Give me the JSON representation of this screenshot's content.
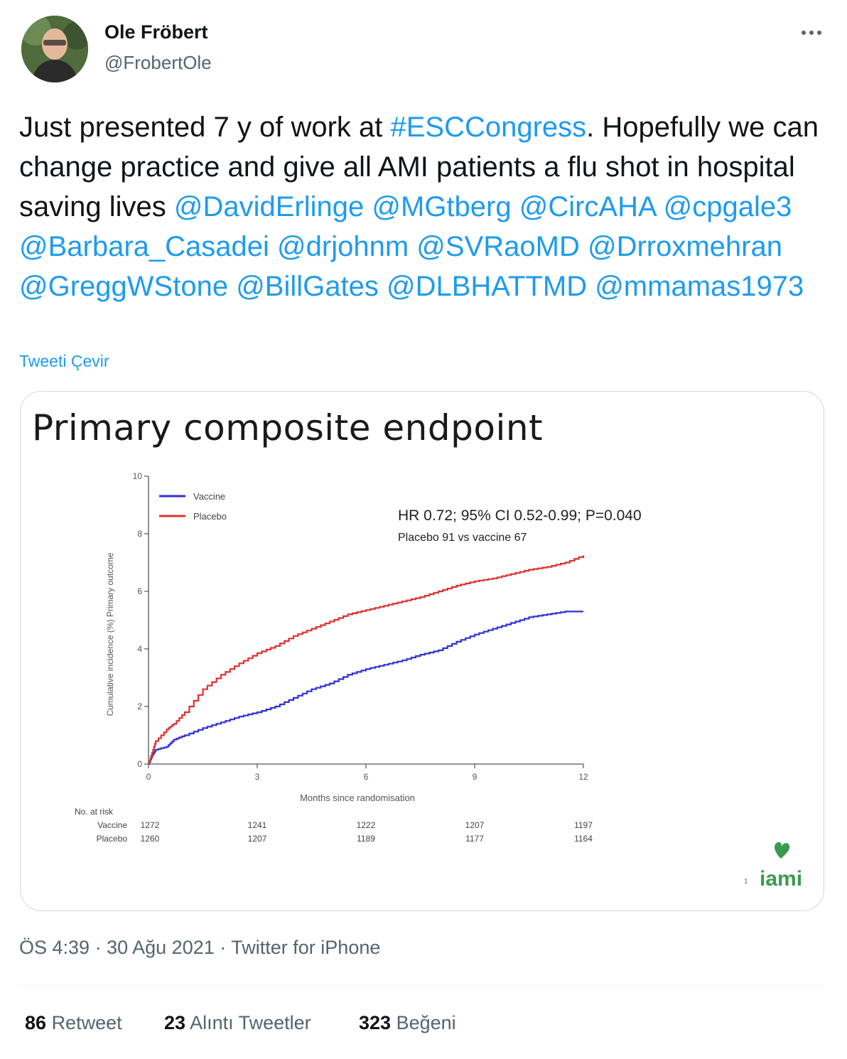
{
  "author": {
    "name": "Ole Fröbert",
    "handle": "@FrobertOle"
  },
  "more_icon": "more-icon",
  "tweet": {
    "segments": [
      {
        "text": "Just presented 7 y of work at ",
        "link": false
      },
      {
        "text": "#ESCCongress",
        "link": true
      },
      {
        "text": ". Hopefully we can change practice and give all AMI patients a flu shot in hospital saving lives ",
        "link": false
      },
      {
        "text": "@DavidErlinge",
        "link": true
      },
      {
        "text": " ",
        "link": false
      },
      {
        "text": "@MGtberg",
        "link": true
      },
      {
        "text": " ",
        "link": false
      },
      {
        "text": "@CircAHA",
        "link": true
      },
      {
        "text": " ",
        "link": false
      },
      {
        "text": "@cpgale3",
        "link": true
      },
      {
        "text": " ",
        "link": false
      },
      {
        "text": "@Barbara_Casadei",
        "link": true
      },
      {
        "text": " ",
        "link": false
      },
      {
        "text": "@drjohnm",
        "link": true
      },
      {
        "text": " ",
        "link": false
      },
      {
        "text": "@SVRaoMD",
        "link": true
      },
      {
        "text": " ",
        "link": false
      },
      {
        "text": "@Drroxmehran",
        "link": true
      },
      {
        "text": " ",
        "link": false
      },
      {
        "text": "@GreggWStone",
        "link": true
      },
      {
        "text": " ",
        "link": false
      },
      {
        "text": "@BillGates",
        "link": true
      },
      {
        "text": " ",
        "link": false
      },
      {
        "text": "@DLBHATTMD",
        "link": true
      },
      {
        "text": " ",
        "link": false
      },
      {
        "text": "@mmamas1973",
        "link": true
      }
    ],
    "translate_label": "Tweeti Çevir"
  },
  "media": {
    "slide_title": "Primary composite endpoint",
    "slide_number": "1",
    "logo_text": "iami",
    "logo_color": "#3a9b50"
  },
  "chart_data": {
    "type": "line",
    "xlabel": "Months since randomisation",
    "ylabel": "Cumulative incidence (%) Primary outcome",
    "xlim": [
      0,
      12
    ],
    "ylim": [
      0,
      10
    ],
    "xticks": [
      0,
      3,
      6,
      9,
      12
    ],
    "yticks": [
      0,
      2,
      4,
      6,
      8,
      10
    ],
    "legend_position": "top-left",
    "annotations": [
      "HR 0.72; 95% CI 0.52-0.99; P=0.040",
      "Placebo 91 vs vaccine 67"
    ],
    "series": [
      {
        "name": "Vaccine",
        "color": "#3030d8",
        "x": [
          0,
          0.1,
          0.2,
          0.5,
          0.7,
          1.0,
          1.5,
          2.0,
          2.5,
          3.0,
          3.5,
          4.0,
          4.5,
          5.0,
          5.5,
          6.0,
          6.5,
          7.0,
          7.5,
          8.0,
          8.5,
          9.0,
          9.5,
          10.0,
          10.5,
          11.0,
          11.5,
          12.0
        ],
        "y": [
          0,
          0.3,
          0.5,
          0.6,
          0.85,
          1.0,
          1.25,
          1.45,
          1.65,
          1.8,
          2.0,
          2.3,
          2.6,
          2.8,
          3.1,
          3.3,
          3.45,
          3.6,
          3.8,
          3.95,
          4.25,
          4.5,
          4.7,
          4.9,
          5.1,
          5.2,
          5.3,
          5.3
        ]
      },
      {
        "name": "Placebo",
        "color": "#e03030",
        "x": [
          0,
          0.1,
          0.2,
          0.5,
          0.7,
          1.0,
          1.5,
          2.0,
          2.5,
          3.0,
          3.5,
          4.0,
          4.5,
          5.0,
          5.5,
          6.0,
          6.5,
          7.0,
          7.5,
          8.0,
          8.5,
          9.0,
          9.5,
          10.0,
          10.5,
          11.0,
          11.5,
          12.0
        ],
        "y": [
          0,
          0.4,
          0.8,
          1.2,
          1.4,
          1.8,
          2.6,
          3.1,
          3.5,
          3.85,
          4.1,
          4.45,
          4.7,
          4.95,
          5.2,
          5.35,
          5.5,
          5.65,
          5.8,
          6.0,
          6.2,
          6.35,
          6.45,
          6.6,
          6.75,
          6.85,
          7.0,
          7.25
        ]
      }
    ],
    "risk_table": {
      "header": "No. at risk",
      "times": [
        0,
        3,
        6,
        9,
        12
      ],
      "rows": [
        {
          "label": "Vaccine",
          "values": [
            "1272",
            "1241",
            "1222",
            "1207",
            "1197"
          ]
        },
        {
          "label": "Placebo",
          "values": [
            "1260",
            "1207",
            "1189",
            "1177",
            "1164"
          ]
        }
      ]
    }
  },
  "meta": {
    "time": "ÖS 4:39",
    "date": "30 Ağu 2021",
    "source": "Twitter for iPhone",
    "separator": "·"
  },
  "stats": {
    "retweets_count": "86",
    "retweets_label": "Retweet",
    "quotes_count": "23",
    "quotes_label": "Alıntı Tweetler",
    "likes_count": "323",
    "likes_label": "Beğeni"
  }
}
